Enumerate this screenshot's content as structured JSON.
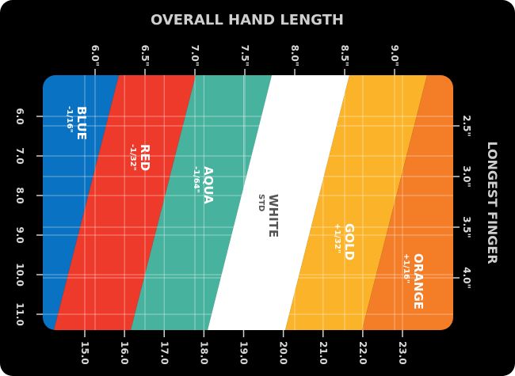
{
  "chart_data": {
    "type": "area",
    "title": "OVERALL HAND LENGTH",
    "right_title": "LONGEST FINGER",
    "top_ticks": [
      "6.0\"",
      "6.5\"",
      "7.0\"",
      "7.5\"",
      "8.0\"",
      "8.5\"",
      "9.0\""
    ],
    "top_tick_values": [
      6.0,
      6.5,
      7.0,
      7.5,
      8.0,
      8.5,
      9.0
    ],
    "bottom_ticks": [
      "15.0",
      "16.0",
      "17.0",
      "18.0",
      "19.0",
      "20.0",
      "21.0",
      "22.0",
      "23.0"
    ],
    "bottom_tick_values": [
      15,
      16,
      17,
      18,
      19,
      20,
      21,
      22,
      23
    ],
    "left_ticks": [
      "6.0",
      "7.0",
      "8.0",
      "9.0",
      "10.0",
      "11.0"
    ],
    "left_tick_values": [
      6,
      7,
      8,
      9,
      10,
      11
    ],
    "right_ticks": [
      "2.5\"",
      "3.0\"",
      "3.5\"",
      "4.0\""
    ],
    "right_tick_values": [
      2.5,
      3.0,
      3.5,
      4.0
    ],
    "bands": [
      {
        "name": "BLUE",
        "adjust": "-1/16\"",
        "color": "#0a72c2",
        "text_color": "#ffffff"
      },
      {
        "name": "RED",
        "adjust": "-1/32\"",
        "color": "#ee3a2a",
        "text_color": "#ffffff"
      },
      {
        "name": "AQUA",
        "adjust": "-1/64\"",
        "color": "#47b39f",
        "text_color": "#ffffff"
      },
      {
        "name": "WHITE",
        "adjust": "STD",
        "color": "#ffffff",
        "text_color": "#555555"
      },
      {
        "name": "GOLD",
        "adjust": "+1/32\"",
        "color": "#fbb42a",
        "text_color": "#ffffff"
      },
      {
        "name": "ORANGE",
        "adjust": "+1/16\"",
        "color": "#f47d27",
        "text_color": "#ffffff"
      }
    ],
    "grid": true
  }
}
